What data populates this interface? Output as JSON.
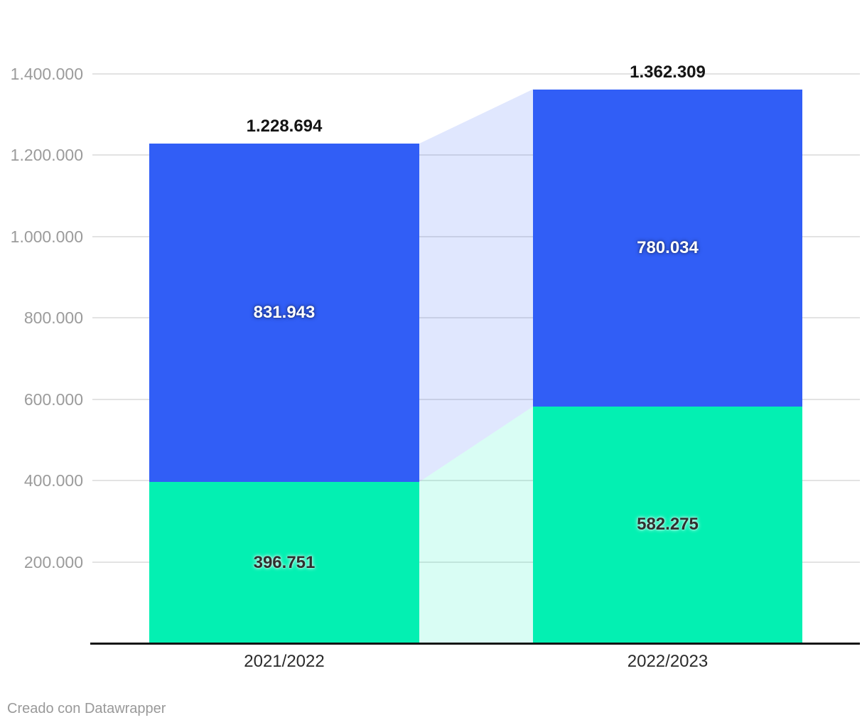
{
  "footer": {
    "text": "Creado con Datawrapper"
  },
  "chart_data": {
    "type": "bar",
    "variant": "stacked-column-with-connectors",
    "title": "",
    "xlabel": "",
    "ylabel": "",
    "categories": [
      "2021/2022",
      "2022/2023"
    ],
    "series": [
      {
        "name": "bottom-segment",
        "color": "#03F0B2",
        "label_color": "#2F2F2F",
        "values": [
          396751,
          582275
        ],
        "labels": [
          "396.751",
          "582.275"
        ]
      },
      {
        "name": "top-segment",
        "color": "#315EF6",
        "label_color": "#FFFFFF",
        "values": [
          831943,
          780034
        ],
        "labels": [
          "831.943",
          "780.034"
        ]
      }
    ],
    "totals": {
      "values": [
        1228694,
        1362309
      ],
      "labels": [
        "1.228.694",
        "1.362.309"
      ]
    },
    "yticks": {
      "values": [
        200000,
        400000,
        600000,
        800000,
        1000000,
        1200000,
        1400000
      ],
      "labels": [
        "200.000",
        "400.000",
        "600.000",
        "800.000",
        "1.000.000",
        "1.200.000",
        "1.400.000"
      ]
    },
    "ylim": [
      0,
      1400000
    ],
    "grid": true,
    "legend": "none",
    "connectors": true,
    "colors": {
      "grid": "#E3E3E3",
      "axis": "#151515",
      "y_tick_text": "#9B9B9B",
      "x_tick_text": "#2B2B2B",
      "total_text": "#141414",
      "background": "#FFFFFF"
    },
    "connector_opacity": 0.15
  }
}
